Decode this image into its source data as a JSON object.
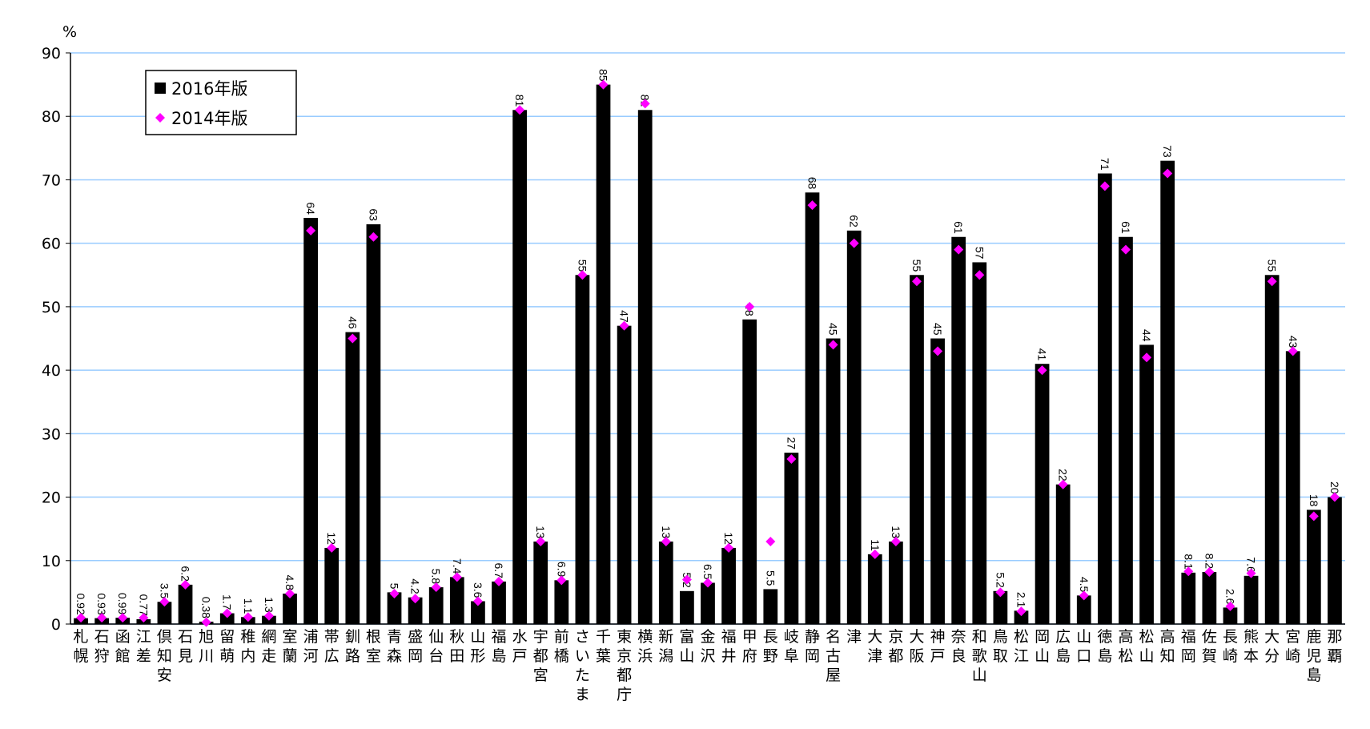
{
  "chart_data": {
    "type": "bar",
    "ylabel": "%",
    "categories": [
      "札幌",
      "石狩",
      "函館",
      "江差",
      "倶知安",
      "石見",
      "旭川",
      "留萌",
      "稚内",
      "網走",
      "室蘭",
      "浦河",
      "帯広",
      "釧路",
      "根室",
      "青森",
      "盛岡",
      "仙台",
      "秋田",
      "山形",
      "福島",
      "水戸",
      "宇都宮",
      "前橋",
      "さいたま",
      "千葉",
      "東京都庁",
      "横浜",
      "新潟",
      "富山",
      "金沢",
      "福井",
      "甲府",
      "長野",
      "岐阜",
      "静岡",
      "名古屋",
      "津",
      "大津",
      "京都",
      "大阪",
      "神戸",
      "奈良",
      "和歌山",
      "鳥取",
      "松江",
      "岡山",
      "広島",
      "山口",
      "徳島",
      "高松",
      "松山",
      "高知",
      "福岡",
      "佐賀",
      "長崎",
      "熊本",
      "大分",
      "宮崎",
      "鹿児島",
      "那覇"
    ],
    "series": [
      {
        "name": "2016年版",
        "color": "#000000",
        "mark": "bar",
        "data_labels": true,
        "values": [
          0.92,
          0.93,
          0.99,
          0.77,
          3.5,
          6.2,
          0.38,
          1.7,
          1.1,
          1.3,
          4.8,
          64,
          12,
          46,
          63,
          5,
          4.2,
          5.8,
          7.4,
          3.6,
          6.7,
          81,
          13,
          6.9,
          55,
          85,
          47,
          81,
          13,
          5.2,
          6.5,
          12,
          48,
          5.5,
          27,
          68,
          45,
          62,
          11,
          13,
          55,
          45,
          61,
          57,
          5.2,
          2.1,
          41,
          22,
          4.5,
          71,
          61,
          44,
          73,
          8.1,
          8.2,
          2.6,
          7.6,
          55,
          43,
          18,
          20
        ]
      },
      {
        "name": "2014年版",
        "color": "#ff00ff",
        "mark": "diamond",
        "data_labels": false,
        "values": [
          1,
          1,
          1,
          1,
          3.5,
          6.2,
          0.3,
          1.7,
          1.1,
          1.3,
          4.8,
          62,
          12,
          45,
          61,
          4.8,
          4,
          5.8,
          7.4,
          3.6,
          6.7,
          81,
          13,
          6.9,
          55,
          85,
          47,
          82,
          13,
          7,
          6.5,
          12,
          50,
          13,
          26,
          66,
          44,
          60,
          11,
          13,
          54,
          43,
          59,
          55,
          5,
          2,
          40,
          22,
          4.5,
          69,
          59,
          42,
          71,
          8.3,
          8.2,
          2.8,
          8,
          54,
          43,
          17,
          20
        ]
      }
    ],
    "ylim": [
      0,
      90
    ],
    "yticks": [
      0,
      10,
      20,
      30,
      40,
      50,
      60,
      70,
      80,
      90
    ],
    "grid": true,
    "grid_color": "#99ccff",
    "legend": "upper-left"
  }
}
